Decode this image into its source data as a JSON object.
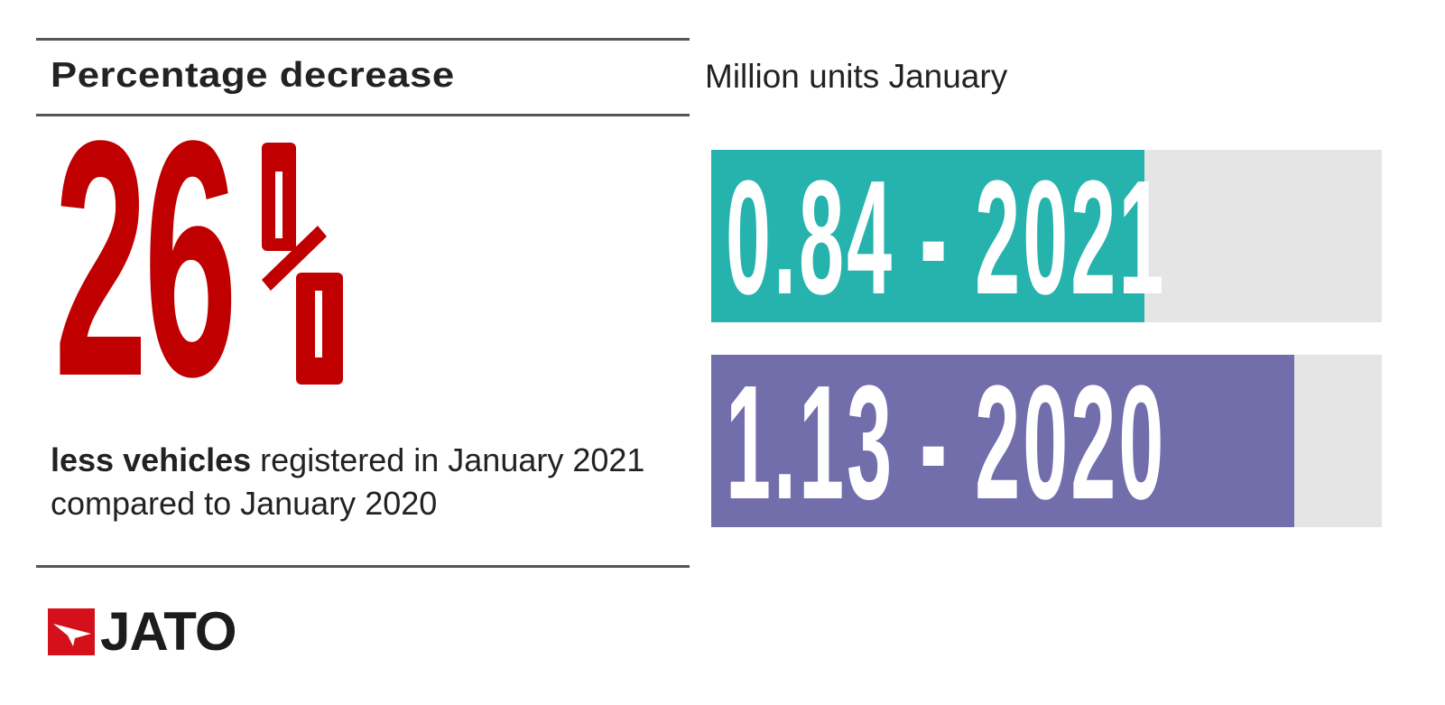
{
  "left_panel": {
    "heading": "Percentage decrease",
    "big_number": "26",
    "big_symbol": "%",
    "description_bold": "less vehicles",
    "description_rest": " registered in January 2021 compared to January 2020",
    "logo_text": "JATO"
  },
  "colors": {
    "accent_red": "#c00000",
    "bar_2021": "#26b3ae",
    "bar_2020": "#726dab",
    "track": "#e6e5e6"
  },
  "chart_data": {
    "type": "bar",
    "orientation": "horizontal",
    "title": "Million units January",
    "categories": [
      "2021",
      "2020"
    ],
    "values": [
      0.84,
      1.13
    ],
    "labels": [
      "0.84 - 2021",
      "1.13 - 2020"
    ],
    "xlim": [
      0,
      1.3
    ],
    "unit": "million units"
  }
}
